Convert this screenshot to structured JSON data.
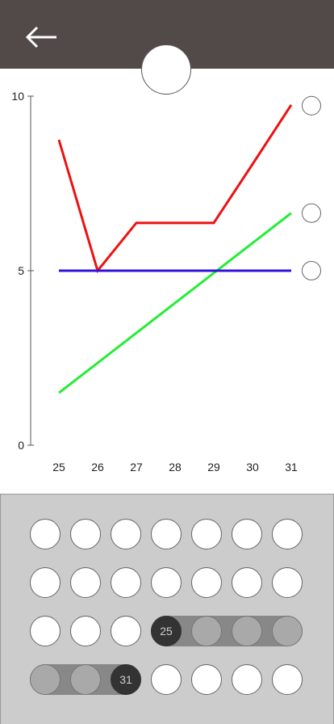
{
  "header": {
    "back_icon": "arrow-left-icon",
    "background": "#514a49"
  },
  "chart_data": {
    "type": "line",
    "x": [
      25,
      26,
      27,
      28,
      29,
      30,
      31
    ],
    "ylim": [
      0,
      10
    ],
    "yticks": [
      0,
      5,
      10
    ],
    "series": [
      {
        "color": "#ee1111",
        "x": [
          25,
          26,
          27,
          28,
          29,
          30,
          31
        ],
        "y": [
          8.75,
          5.0,
          6.37,
          6.37,
          6.37,
          8.05,
          9.75
        ]
      },
      {
        "color": "#22ee33",
        "x": [
          25,
          31
        ],
        "y": [
          1.5,
          6.65
        ]
      },
      {
        "color": "#3311dd",
        "x": [
          25,
          31
        ],
        "y": [
          5.0,
          5.0
        ]
      }
    ],
    "grid": false,
    "legend": "right"
  },
  "calendar": {
    "rows": [
      [
        {
          "t": "",
          "s": "empty"
        },
        {
          "t": "",
          "s": "empty"
        },
        {
          "t": "",
          "s": "empty"
        },
        {
          "t": "",
          "s": "empty"
        },
        {
          "t": "",
          "s": "empty"
        },
        {
          "t": "",
          "s": "empty"
        },
        {
          "t": "",
          "s": "empty"
        }
      ],
      [
        {
          "t": "",
          "s": "empty"
        },
        {
          "t": "",
          "s": "empty"
        },
        {
          "t": "",
          "s": "empty"
        },
        {
          "t": "",
          "s": "empty"
        },
        {
          "t": "",
          "s": "empty"
        },
        {
          "t": "",
          "s": "empty"
        },
        {
          "t": "",
          "s": "empty"
        }
      ],
      [
        {
          "t": "",
          "s": "empty"
        },
        {
          "t": "",
          "s": "empty"
        },
        {
          "t": "",
          "s": "empty"
        },
        {
          "t": "25",
          "s": "endpoint"
        },
        {
          "t": "",
          "s": "range"
        },
        {
          "t": "",
          "s": "range"
        },
        {
          "t": "",
          "s": "range"
        }
      ],
      [
        {
          "t": "",
          "s": "range"
        },
        {
          "t": "",
          "s": "range"
        },
        {
          "t": "31",
          "s": "endpoint"
        },
        {
          "t": "",
          "s": "empty"
        },
        {
          "t": "",
          "s": "empty"
        },
        {
          "t": "",
          "s": "empty"
        },
        {
          "t": "",
          "s": "empty"
        }
      ]
    ]
  }
}
